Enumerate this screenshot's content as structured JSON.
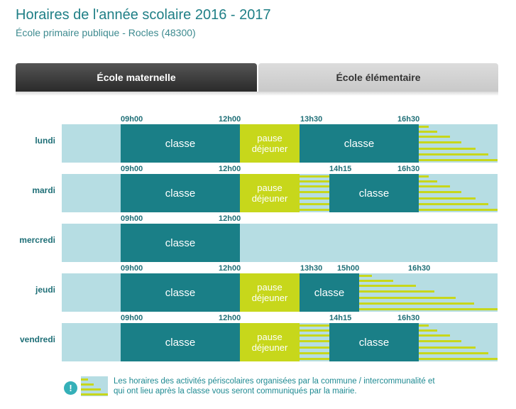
{
  "header": {
    "title": "Horaires de l'année scolaire 2016 - 2017",
    "subtitle": "École primaire publique - Rocles (48300)"
  },
  "tabs": [
    {
      "label": "École maternelle",
      "active": true
    },
    {
      "label": "École élémentaire",
      "active": false
    }
  ],
  "schedule": {
    "class_label": "classe",
    "pause_line1": "pause",
    "pause_line2": "déjeuner",
    "days": [
      {
        "name": "lundi",
        "times": [
          "09h00",
          "12h00",
          "13h30",
          "16h30"
        ]
      },
      {
        "name": "mardi",
        "times": [
          "09h00",
          "12h00",
          "14h15",
          "16h30"
        ]
      },
      {
        "name": "mercredi",
        "times": [
          "09h00",
          "12h00"
        ]
      },
      {
        "name": "jeudi",
        "times": [
          "09h00",
          "12h00",
          "13h30",
          "15h00",
          "16h30"
        ]
      },
      {
        "name": "vendredi",
        "times": [
          "09h00",
          "12h00",
          "14h15",
          "16h30"
        ]
      }
    ]
  },
  "note": {
    "icon": "info-icon",
    "text_line1": "Les horaires des activités périscolaires organisées par la commune / intercommunalité et",
    "text_line2": "qui ont lieu après la classe vous seront communiqués par la mairie."
  },
  "colors": {
    "class": "#1a7f87",
    "pause": "#c7d71b",
    "background_bar": "#b6dde3",
    "accent_text": "#1f7f86"
  }
}
